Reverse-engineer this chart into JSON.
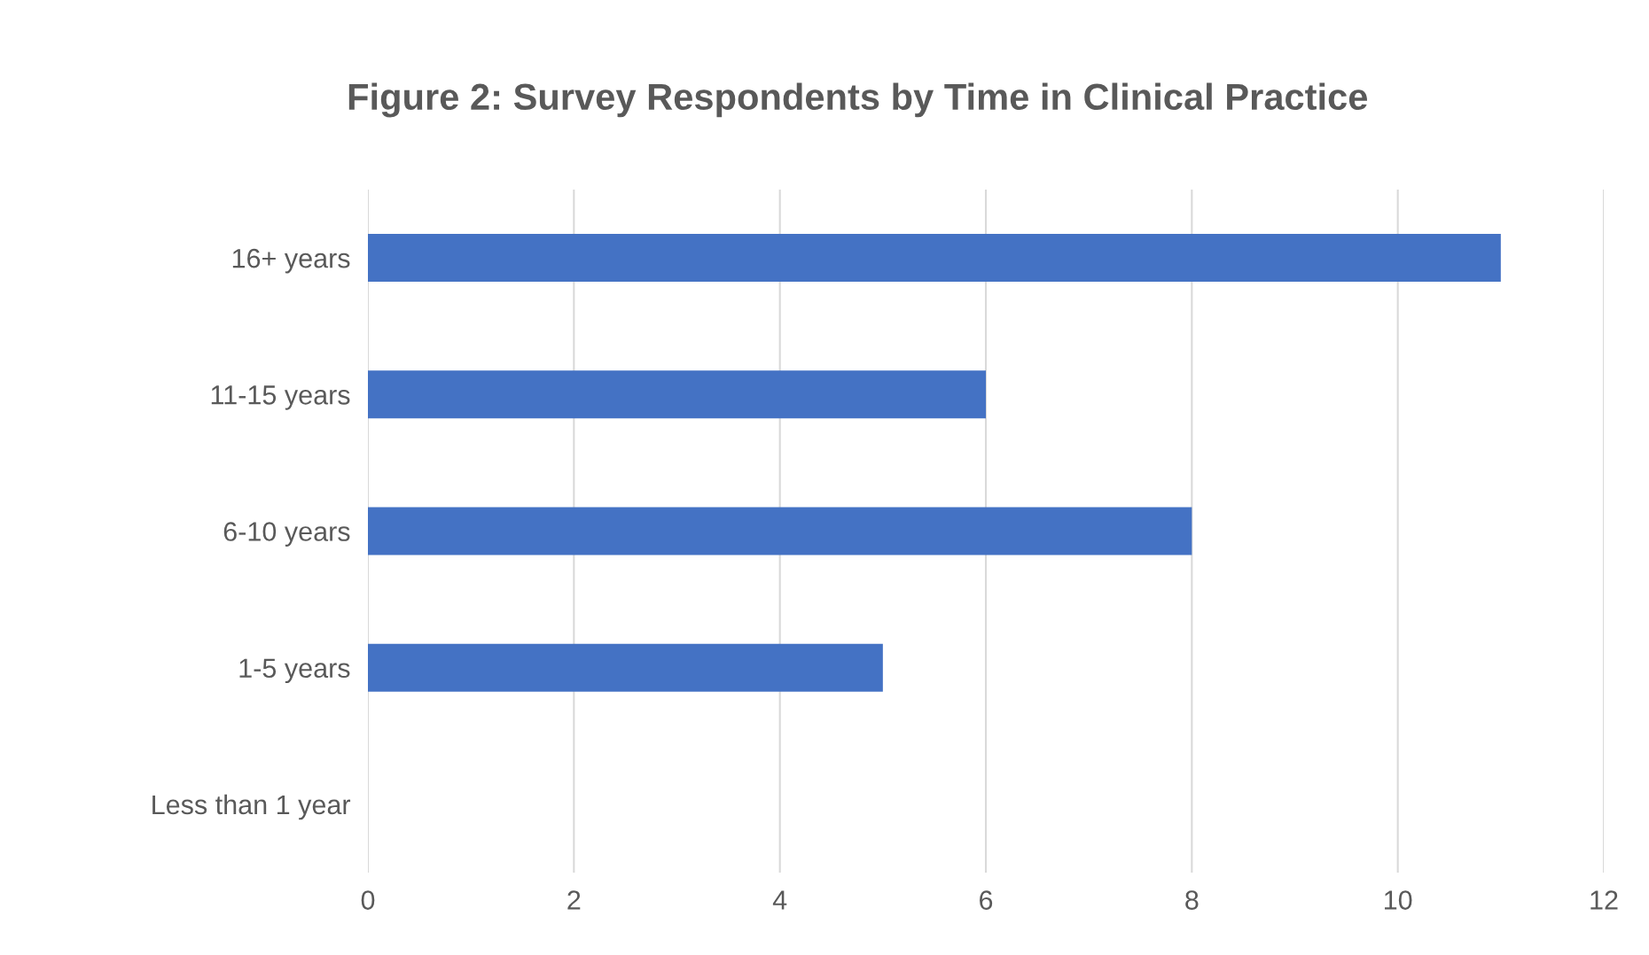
{
  "chart_data": {
    "type": "bar",
    "orientation": "horizontal",
    "title": "Figure 2: Survey Respondents by Time in Clinical Practice",
    "categories": [
      "16+ years",
      "11-15 years",
      "6-10 years",
      "1-5 years",
      "Less than 1 year"
    ],
    "values": [
      11,
      6,
      8,
      5,
      0
    ],
    "color": "#4472c4",
    "xlim": [
      0,
      12
    ],
    "xticks": [
      0,
      2,
      4,
      6,
      8,
      10,
      12
    ],
    "grid": "x"
  }
}
